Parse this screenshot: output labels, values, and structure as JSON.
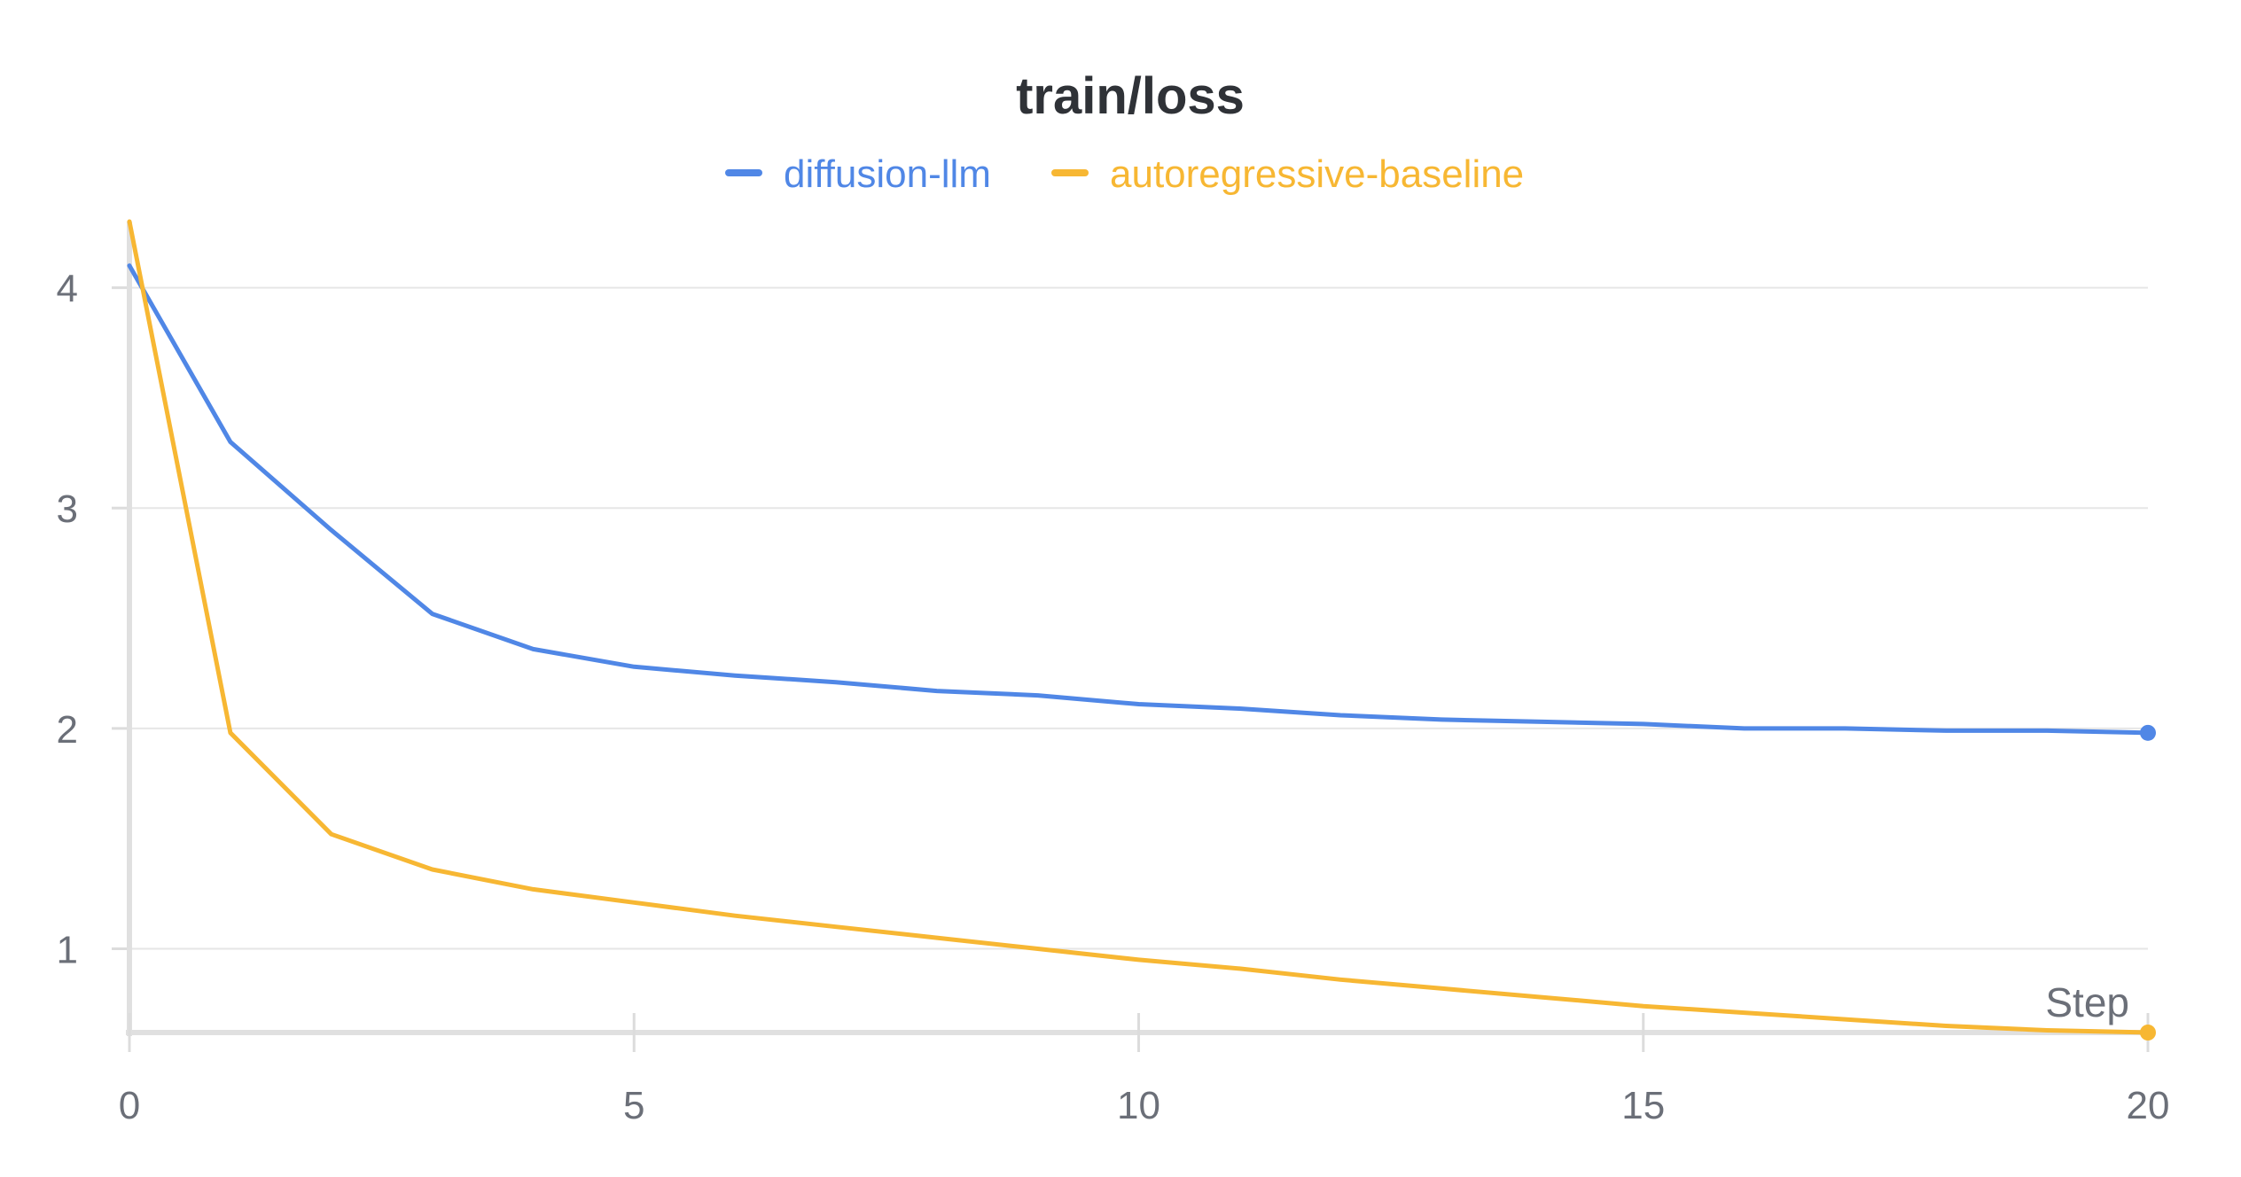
{
  "chart_data": {
    "type": "line",
    "title": "train/loss",
    "xlabel": "Step",
    "ylabel": "",
    "xlim": [
      0,
      20
    ],
    "ylim": [
      0.62,
      4.3
    ],
    "xticks": [
      0,
      5,
      10,
      15,
      20
    ],
    "yticks": [
      1,
      2,
      3,
      4
    ],
    "grid": true,
    "legend_position": "top-center",
    "x": [
      0,
      1,
      2,
      3,
      4,
      5,
      6,
      7,
      8,
      9,
      10,
      11,
      12,
      13,
      14,
      15,
      16,
      17,
      18,
      19,
      20
    ],
    "series": [
      {
        "name": "diffusion-llm",
        "color": "#5087e6",
        "values": [
          4.1,
          3.3,
          2.9,
          2.52,
          2.36,
          2.28,
          2.24,
          2.21,
          2.17,
          2.15,
          2.11,
          2.09,
          2.06,
          2.04,
          2.03,
          2.02,
          2.0,
          2.0,
          1.99,
          1.99,
          1.98
        ]
      },
      {
        "name": "autoregressive-baseline",
        "color": "#f7b733",
        "values": [
          4.3,
          1.98,
          1.52,
          1.36,
          1.27,
          1.21,
          1.15,
          1.1,
          1.05,
          1.0,
          0.95,
          0.91,
          0.86,
          0.82,
          0.78,
          0.74,
          0.71,
          0.68,
          0.65,
          0.63,
          0.62
        ]
      }
    ]
  }
}
